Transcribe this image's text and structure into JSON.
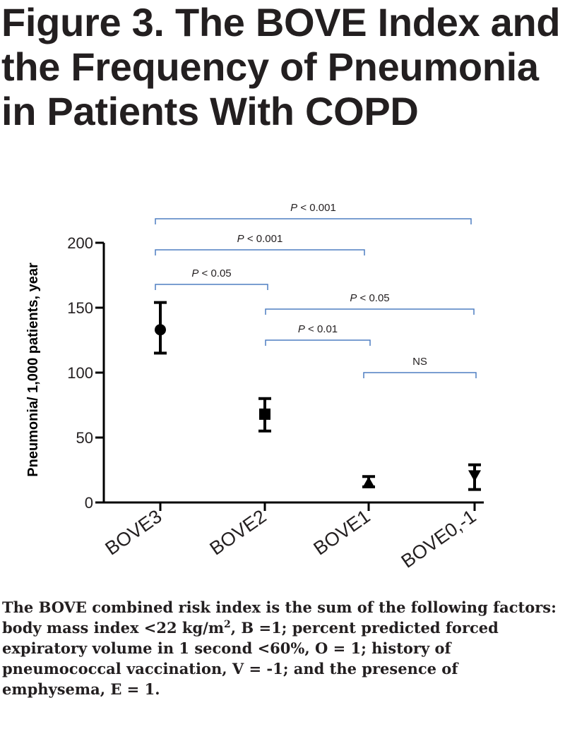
{
  "figure": {
    "title": "Figure 3. The BOVE Index and the Frequency of Pneumonia in Patients With COPD",
    "caption_before_sup": "The BOVE combined risk index is the sum of the following factors: body mass index <22 kg/m",
    "caption_sup": "2",
    "caption_after_sup": ", B =1; percent predicted forced expiratory volume in 1 second <60%, O = 1; history of pneumococcal vaccination, V = -1; and the presence of emphysema, E = 1."
  },
  "chart_data": {
    "type": "scatter",
    "ylabel": "Pneumonia/ 1,000 patients, year",
    "xlabel": "",
    "ylim": [
      0,
      200
    ],
    "yticks": [
      "0",
      "50",
      "100",
      "150",
      "200"
    ],
    "categories": [
      "BOVE3",
      "BOVE2",
      "BOVE1",
      "BOVE0,-1"
    ],
    "points": [
      {
        "category": "BOVE3",
        "marker": "circle",
        "value": 133,
        "lower": 115,
        "upper": 154
      },
      {
        "category": "BOVE2",
        "marker": "square",
        "value": 68,
        "lower": 55,
        "upper": 80
      },
      {
        "category": "BOVE1",
        "marker": "triangle-up",
        "value": 15,
        "lower": 12,
        "upper": 20
      },
      {
        "category": "BOVE0,-1",
        "marker": "triangle-down",
        "value": 21,
        "lower": 10,
        "upper": 29
      }
    ],
    "comparisons": [
      {
        "from": "BOVE3",
        "to": "BOVE0,-1",
        "prefix": "P",
        "label": " < 0.001"
      },
      {
        "from": "BOVE3",
        "to": "BOVE1",
        "prefix": "P",
        "label": " < 0.001"
      },
      {
        "from": "BOVE3",
        "to": "BOVE2",
        "prefix": "P",
        "label": " < 0.05"
      },
      {
        "from": "BOVE2",
        "to": "BOVE0,-1",
        "prefix": "P",
        "label": " < 0.05"
      },
      {
        "from": "BOVE2",
        "to": "BOVE1",
        "prefix": "P",
        "label": " < 0.01"
      },
      {
        "from": "BOVE1",
        "to": "BOVE0,-1",
        "prefix": "",
        "label": "NS"
      }
    ],
    "colors": {
      "bracket": "#4f7ec2",
      "axis": "#000000",
      "text": "#231f20"
    }
  }
}
